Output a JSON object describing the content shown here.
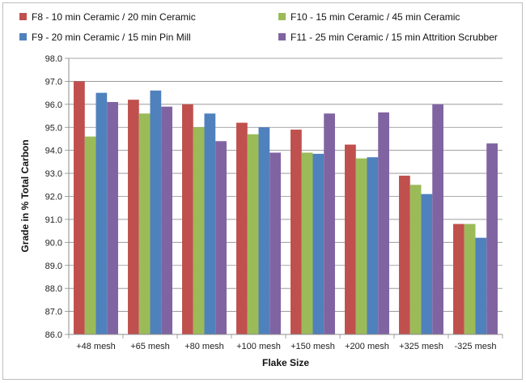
{
  "chart_data": {
    "type": "bar",
    "title": "",
    "xlabel": "Flake Size",
    "ylabel": "Grade in % Total Carbon",
    "ylim": [
      86.0,
      98.0
    ],
    "ytick_step": 1.0,
    "grid": true,
    "legend_position": "top",
    "categories": [
      "+48 mesh",
      "+65 mesh",
      "+80 mesh",
      "+100 mesh",
      "+150 mesh",
      "+200 mesh",
      "+325 mesh",
      "-325 mesh"
    ],
    "series": [
      {
        "name": "F8 - 10 min Ceramic / 20 min Ceramic",
        "color": "#c0504d",
        "values": [
          97.0,
          96.2,
          96.0,
          95.2,
          94.9,
          94.25,
          92.9,
          90.8
        ]
      },
      {
        "name": "F10 - 15 min Ceramic / 45 min Ceramic",
        "color": "#9bbb59",
        "values": [
          94.6,
          95.6,
          95.0,
          94.7,
          93.9,
          93.65,
          92.5,
          90.8
        ]
      },
      {
        "name": "F9 - 20 min Ceramic / 15 min Pin Mill",
        "color": "#4f81bd",
        "values": [
          96.5,
          96.6,
          95.6,
          95.0,
          93.85,
          93.7,
          92.1,
          90.2
        ]
      },
      {
        "name": "F11 - 25 min Ceramic / 15 min Attrition Scrubber",
        "color": "#8064a2",
        "values": [
          96.1,
          95.9,
          94.4,
          93.9,
          95.6,
          95.65,
          96.0,
          94.3
        ]
      }
    ]
  }
}
